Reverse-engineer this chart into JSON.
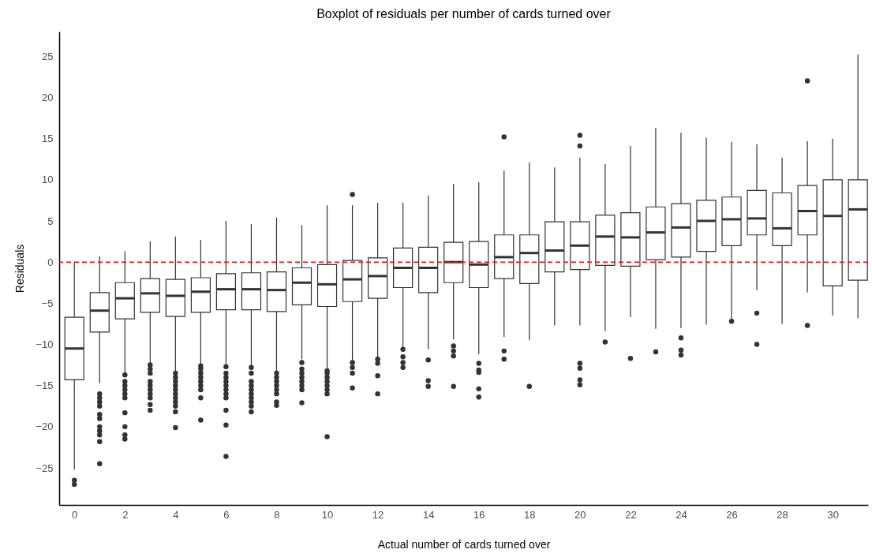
{
  "chart_data": {
    "type": "box",
    "title": "Boxplot of residuals per number of cards turned over",
    "xlabel": "Actual number of cards turned over",
    "ylabel": "Residuals",
    "x": [
      0,
      1,
      2,
      3,
      4,
      5,
      6,
      7,
      8,
      9,
      10,
      11,
      12,
      13,
      14,
      15,
      16,
      17,
      18,
      19,
      20,
      21,
      22,
      23,
      24,
      25,
      26,
      27,
      28,
      29,
      30,
      31
    ],
    "xlim": [
      -0.6,
      31.4
    ],
    "xticks": [
      0,
      2,
      4,
      6,
      8,
      10,
      12,
      14,
      16,
      18,
      20,
      22,
      24,
      26,
      28,
      30
    ],
    "boxes": [
      {
        "low": -25.2,
        "q1": -14.3,
        "median": -10.5,
        "q3": -6.7,
        "high": 0,
        "outliers": [
          -26.5,
          -27
        ]
      },
      {
        "low": -14.7,
        "q1": -8.5,
        "median": -5.9,
        "q3": -3.7,
        "high": 0.7,
        "outliers": [
          -16,
          -16.5,
          -17,
          -17.5,
          -18.5,
          -19,
          -20,
          -20.5,
          -21,
          -21.8,
          -24.5
        ]
      },
      {
        "low": -13.5,
        "q1": -6.9,
        "median": -4.4,
        "q3": -2.5,
        "high": 1.3,
        "outliers": [
          -13.7,
          -14.5,
          -15,
          -15.5,
          -16,
          -16.5,
          -18.3,
          -20,
          -21,
          -21.5
        ]
      },
      {
        "low": -12.3,
        "q1": -6.1,
        "median": -3.8,
        "q3": -2,
        "high": 2.5,
        "outliers": [
          -12.5,
          -13,
          -13.5,
          -14.5,
          -15,
          -15.5,
          -16,
          -16.5,
          -17.3,
          -18
        ]
      },
      {
        "low": -13.2,
        "q1": -6.6,
        "median": -4.1,
        "q3": -2.1,
        "high": 3.1,
        "outliers": [
          -13.5,
          -14,
          -14.5,
          -15,
          -15.5,
          -16,
          -16.5,
          -17,
          -17.5,
          -18.2,
          -20.1
        ]
      },
      {
        "low": -12.4,
        "q1": -6.1,
        "median": -3.6,
        "q3": -1.9,
        "high": 2.7,
        "outliers": [
          -12.6,
          -13,
          -13.5,
          -14,
          -14.5,
          -15,
          -15.5,
          -16.5,
          -19.2
        ]
      },
      {
        "low": -12.5,
        "q1": -5.8,
        "median": -3.3,
        "q3": -1.4,
        "high": 5,
        "outliers": [
          -12.7,
          -13.5,
          -14,
          -14.5,
          -15,
          -15.5,
          -16,
          -16.5,
          -18,
          -19.8,
          -23.6
        ]
      },
      {
        "low": -12.7,
        "q1": -5.8,
        "median": -3.3,
        "q3": -1.3,
        "high": 4.6,
        "outliers": [
          -12.8,
          -13.5,
          -14.5,
          -15,
          -15.5,
          -16,
          -16.5,
          -17,
          -17.5,
          -18.2
        ]
      },
      {
        "low": -13.3,
        "q1": -6,
        "median": -3.4,
        "q3": -1.2,
        "high": 5.4,
        "outliers": [
          -13.5,
          -14,
          -14.5,
          -15,
          -15.5,
          -16,
          -17,
          -17.4
        ]
      },
      {
        "low": -11.8,
        "q1": -5.2,
        "median": -2.5,
        "q3": -0.7,
        "high": 4.5,
        "outliers": [
          -12.2,
          -13,
          -13.5,
          -14,
          -14.5,
          -15,
          -15.5,
          -17.1
        ]
      },
      {
        "low": -13,
        "q1": -5.4,
        "median": -2.7,
        "q3": -0.3,
        "high": 6.9,
        "outliers": [
          -13.2,
          -13.5,
          -14,
          -14.5,
          -15,
          -15.5,
          -16,
          -21.2
        ]
      },
      {
        "low": -12,
        "q1": -4.8,
        "median": -2.1,
        "q3": 0.2,
        "high": 6.9,
        "outliers": [
          8.2,
          -12.2,
          -12.8,
          -13.5,
          -15.3
        ]
      },
      {
        "low": -11.5,
        "q1": -4.4,
        "median": -1.7,
        "q3": 0.5,
        "high": 7.2,
        "outliers": [
          -11.8,
          -12.3,
          -13.8,
          -16
        ]
      },
      {
        "low": -10.3,
        "q1": -3.1,
        "median": -0.7,
        "q3": 1.7,
        "high": 7.2,
        "outliers": [
          -10.6,
          -11.5,
          -12.2,
          -12.8
        ]
      },
      {
        "low": -10.6,
        "q1": -3.7,
        "median": -0.7,
        "q3": 1.8,
        "high": 8.1,
        "outliers": [
          -11.9,
          -14.4,
          -15.1
        ]
      },
      {
        "low": -9.4,
        "q1": -2.5,
        "median": 0,
        "q3": 2.4,
        "high": 9.5,
        "outliers": [
          -10.2,
          -10.8,
          -11.4,
          -15.1
        ]
      },
      {
        "low": -11.2,
        "q1": -3.1,
        "median": -0.3,
        "q3": 2.5,
        "high": 9.7,
        "outliers": [
          -12.3,
          -13.1,
          -13.4,
          -15.4,
          -16.4
        ]
      },
      {
        "low": -9.1,
        "q1": -2,
        "median": 0.6,
        "q3": 3.3,
        "high": 11.1,
        "outliers": [
          15.2,
          -10.8,
          -11.8
        ]
      },
      {
        "low": -9.5,
        "q1": -2.6,
        "median": 1.1,
        "q3": 3.3,
        "high": 12.1,
        "outliers": [
          -15.1
        ]
      },
      {
        "low": -7.7,
        "q1": -1.2,
        "median": 1.4,
        "q3": 4.9,
        "high": 11.5
      },
      {
        "low": -7.7,
        "q1": -0.9,
        "median": 2,
        "q3": 4.9,
        "high": 12.7,
        "outliers": [
          15.4,
          14.1,
          -12.3,
          -12.9,
          -14.3,
          -14.9
        ]
      },
      {
        "low": -8.4,
        "q1": -0.4,
        "median": 3.1,
        "q3": 5.7,
        "high": 11.9,
        "outliers": [
          -9.7
        ]
      },
      {
        "low": -6.7,
        "q1": -0.5,
        "median": 3,
        "q3": 6,
        "high": 14.1,
        "outliers": [
          -11.7
        ]
      },
      {
        "low": -8.1,
        "q1": 0.3,
        "median": 3.6,
        "q3": 6.7,
        "high": 16.3,
        "outliers": [
          -10.9
        ]
      },
      {
        "low": -8,
        "q1": 0.6,
        "median": 4.2,
        "q3": 7.1,
        "high": 15.7,
        "outliers": [
          -9.2,
          -10.7,
          -11.3
        ]
      },
      {
        "low": -7.6,
        "q1": 1.3,
        "median": 5,
        "q3": 7.5,
        "high": 15.1
      },
      {
        "low": -6.9,
        "q1": 2,
        "median": 5.2,
        "q3": 7.9,
        "high": 14.6,
        "outliers": [
          -7.2
        ]
      },
      {
        "low": -3.4,
        "q1": 3.3,
        "median": 5.3,
        "q3": 8.7,
        "high": 14.3,
        "outliers": [
          -6.2,
          -10
        ]
      },
      {
        "low": -7.5,
        "q1": 2,
        "median": 4.1,
        "q3": 8.4,
        "high": 12.7
      },
      {
        "low": -3.7,
        "q1": 3.3,
        "median": 6.2,
        "q3": 9.3,
        "high": 14.7,
        "outliers": [
          22,
          -7.7
        ]
      },
      {
        "low": -6.5,
        "q1": -2.9,
        "median": 5.6,
        "q3": 10,
        "high": 15
      },
      {
        "low": -6.8,
        "q1": -2.2,
        "median": 6.4,
        "q3": 10,
        "high": 25.2
      }
    ],
    "ylim": [
      -29.5,
      28
    ],
    "yticks": [
      {
        "value": -25,
        "label": "−25"
      },
      {
        "value": -20,
        "label": "−20"
      },
      {
        "value": -15,
        "label": "−15"
      },
      {
        "value": -10,
        "label": "−10"
      },
      {
        "value": -5,
        "label": "−5"
      },
      0,
      5,
      10,
      15,
      20,
      25
    ],
    "grid": false,
    "ref_lines": [
      {
        "axis": "y",
        "value": 0,
        "color": "#ff0000",
        "line_style": "dashed"
      }
    ]
  }
}
